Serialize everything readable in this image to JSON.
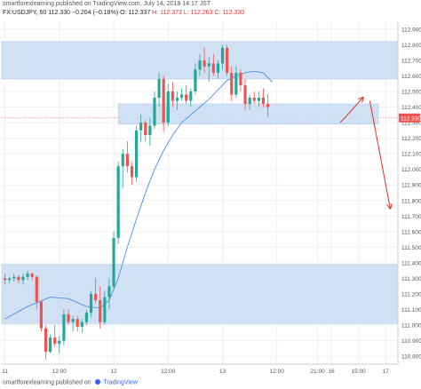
{
  "header": {
    "published_by": "smartforexlearning published on TradingView.com, July 14, 2018 14:17 JST",
    "symbol": "FX:USDJPY, 60",
    "price": "112.330",
    "change": "−0.204 (−0.18%)",
    "open": "O: 112.337",
    "high": "H: 112.373",
    "low": "L: 112.263",
    "close": "C: 112.330"
  },
  "footer": {
    "published_by": "smartforexlearning published on",
    "brand": "TradingView"
  },
  "chart_data": {
    "type": "candlestick",
    "y_ticks": [
      "112.900",
      "112.800",
      "112.700",
      "112.600",
      "112.500",
      "112.400",
      "112.300",
      "112.200",
      "112.100",
      "112.000",
      "111.900",
      "111.800",
      "111.700",
      "111.600",
      "111.500",
      "111.400",
      "111.300",
      "111.200",
      "111.100",
      "111.000",
      "110.900",
      "110.800"
    ],
    "ylim": [
      110.75,
      112.95
    ],
    "x_ticks": [
      {
        "label": "11",
        "x": 0
      },
      {
        "label": "12:00",
        "x": 12
      },
      {
        "label": "12",
        "x": 24
      },
      {
        "label": "12:00",
        "x": 36
      },
      {
        "label": "13",
        "x": 48
      },
      {
        "label": "12:00",
        "x": 60
      },
      {
        "label": "21:00",
        "x": 69
      },
      {
        "label": "16",
        "x": 72
      },
      {
        "label": "15:00",
        "x": 78
      },
      {
        "label": "17",
        "x": 84
      }
    ],
    "xlim": [
      -0.7,
      86.7
    ],
    "last_price": "112.330",
    "zones": [
      {
        "name": "upper-resistance-zone",
        "x_from": -0.7,
        "x_to": 86.7,
        "y_low": 112.58,
        "y_high": 112.82
      },
      {
        "name": "current-zone",
        "x_from": 25,
        "x_to": 82.4,
        "y_low": 112.29,
        "y_high": 112.42
      },
      {
        "name": "lower-support-zone",
        "x_from": -0.7,
        "x_to": 86.7,
        "y_low": 111.01,
        "y_high": 111.39
      }
    ],
    "candles": [
      [
        111.3,
        111.33,
        111.26,
        111.29
      ],
      [
        111.29,
        111.31,
        111.27,
        111.3
      ],
      [
        111.3,
        111.33,
        111.28,
        111.31
      ],
      [
        111.31,
        111.32,
        111.27,
        111.29
      ],
      [
        111.29,
        111.33,
        111.26,
        111.31
      ],
      [
        111.31,
        111.35,
        111.29,
        111.33
      ],
      [
        111.33,
        111.34,
        111.29,
        111.31
      ],
      [
        111.31,
        111.32,
        111.1,
        111.15
      ],
      [
        111.15,
        111.16,
        110.96,
        110.98
      ],
      [
        110.98,
        111.0,
        110.78,
        110.83
      ],
      [
        110.83,
        110.94,
        110.82,
        110.92
      ],
      [
        110.92,
        111.0,
        110.86,
        110.88
      ],
      [
        110.88,
        110.93,
        110.82,
        110.9
      ],
      [
        110.9,
        111.1,
        110.87,
        111.07
      ],
      [
        111.07,
        111.1,
        111.0,
        111.02
      ],
      [
        111.02,
        111.06,
        110.96,
        111.04
      ],
      [
        111.04,
        111.06,
        110.96,
        110.99
      ],
      [
        110.99,
        111.04,
        110.95,
        111.02
      ],
      [
        111.02,
        111.1,
        111.0,
        111.08
      ],
      [
        111.08,
        111.22,
        111.05,
        111.2
      ],
      [
        111.2,
        111.3,
        111.14,
        111.16
      ],
      [
        111.16,
        111.25,
        110.98,
        111.02
      ],
      [
        111.02,
        111.22,
        111.0,
        111.18
      ],
      [
        111.18,
        111.3,
        111.1,
        111.25
      ],
      [
        111.25,
        111.6,
        111.22,
        111.56
      ],
      [
        111.56,
        112.05,
        111.52,
        112.02
      ],
      [
        112.02,
        112.13,
        111.88,
        112.1
      ],
      [
        112.1,
        112.18,
        111.98,
        112.02
      ],
      [
        112.02,
        112.05,
        111.9,
        111.95
      ],
      [
        111.95,
        112.28,
        111.92,
        112.25
      ],
      [
        112.25,
        112.35,
        112.18,
        112.3
      ],
      [
        112.3,
        112.32,
        112.18,
        112.22
      ],
      [
        112.22,
        112.33,
        112.15,
        112.28
      ],
      [
        112.28,
        112.5,
        112.26,
        112.46
      ],
      [
        112.46,
        112.62,
        112.4,
        112.58
      ],
      [
        112.58,
        112.6,
        112.24,
        112.3
      ],
      [
        112.3,
        112.55,
        112.28,
        112.5
      ],
      [
        112.5,
        112.56,
        112.4,
        112.44
      ],
      [
        112.44,
        112.5,
        112.38,
        112.46
      ],
      [
        112.46,
        112.52,
        112.44,
        112.48
      ],
      [
        112.48,
        112.54,
        112.42,
        112.44
      ],
      [
        112.44,
        112.52,
        112.4,
        112.5
      ],
      [
        112.5,
        112.68,
        112.48,
        112.64
      ],
      [
        112.64,
        112.74,
        112.6,
        112.7
      ],
      [
        112.7,
        112.78,
        112.62,
        112.66
      ],
      [
        112.66,
        112.72,
        112.56,
        112.68
      ],
      [
        112.68,
        112.74,
        112.6,
        112.62
      ],
      [
        112.62,
        112.7,
        112.58,
        112.68
      ],
      [
        112.68,
        112.8,
        112.64,
        112.78
      ],
      [
        112.78,
        112.8,
        112.6,
        112.62
      ],
      [
        112.62,
        112.66,
        112.44,
        112.48
      ],
      [
        112.48,
        112.66,
        112.46,
        112.62
      ],
      [
        112.62,
        112.64,
        112.5,
        112.54
      ],
      [
        112.54,
        112.58,
        112.38,
        112.42
      ],
      [
        112.42,
        112.48,
        112.38,
        112.46
      ],
      [
        112.46,
        112.5,
        112.42,
        112.44
      ],
      [
        112.44,
        112.5,
        112.4,
        112.46
      ],
      [
        112.46,
        112.52,
        112.4,
        112.42
      ],
      [
        112.42,
        112.48,
        112.34,
        112.4
      ]
    ],
    "sma": [
      [
        0,
        111.04
      ],
      [
        5,
        111.12
      ],
      [
        10,
        111.18
      ],
      [
        14,
        111.17
      ],
      [
        18,
        111.12
      ],
      [
        21,
        111.11
      ],
      [
        23,
        111.16
      ],
      [
        25,
        111.3
      ],
      [
        27,
        111.5
      ],
      [
        29,
        111.68
      ],
      [
        31,
        111.85
      ],
      [
        33,
        112.0
      ],
      [
        35,
        112.12
      ],
      [
        37,
        112.22
      ],
      [
        39,
        112.3
      ],
      [
        41,
        112.35
      ],
      [
        43,
        112.4
      ],
      [
        45,
        112.45
      ],
      [
        47,
        112.51
      ],
      [
        49,
        112.57
      ],
      [
        51,
        112.6
      ],
      [
        53,
        112.62
      ],
      [
        55,
        112.63
      ],
      [
        57,
        112.62
      ],
      [
        59,
        112.56
      ]
    ],
    "arrows": [
      {
        "name": "up-arrow",
        "from": [
          74,
          112.3
        ],
        "to": [
          79,
          112.46
        ]
      },
      {
        "name": "down-arrow",
        "from": [
          80.5,
          112.44
        ],
        "to": [
          85,
          111.75
        ]
      }
    ]
  }
}
